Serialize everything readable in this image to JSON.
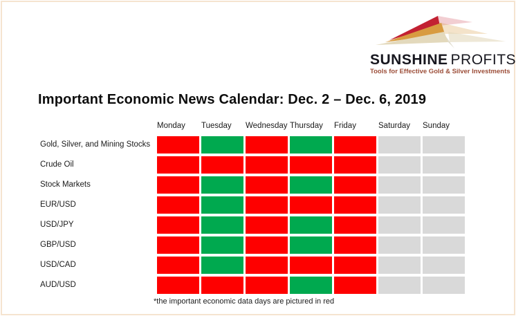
{
  "frame": {
    "border_color": "#f5e4d0"
  },
  "logo": {
    "name_part1": "SUNSHINE",
    "name_part2": "PROFITS",
    "tagline": "Tools for Effective Gold & Silver Investments",
    "colors": {
      "ray_red": "#c22132",
      "ray_gold": "#d89b40",
      "ray_beige": "#e3d9bc",
      "name_text": "#17171f",
      "tagline_text": "#9c4e39"
    }
  },
  "chart_data": {
    "type": "heatmap",
    "title": "Important Economic News Calendar: Dec. 2 – Dec. 6, 2019",
    "columns": [
      "Monday",
      "Tuesday",
      "Wednesday",
      "Thursday",
      "Friday",
      "Saturday",
      "Sunday"
    ],
    "rows": [
      {
        "label": "Gold, Silver, and Mining Stocks",
        "values": [
          "red",
          "green",
          "red",
          "green",
          "red",
          "gray",
          "gray"
        ]
      },
      {
        "label": "Crude Oil",
        "values": [
          "red",
          "red",
          "red",
          "red",
          "red",
          "gray",
          "gray"
        ]
      },
      {
        "label": "Stock Markets",
        "values": [
          "red",
          "green",
          "red",
          "green",
          "red",
          "gray",
          "gray"
        ]
      },
      {
        "label": "EUR/USD",
        "values": [
          "red",
          "green",
          "red",
          "red",
          "red",
          "gray",
          "gray"
        ]
      },
      {
        "label": "USD/JPY",
        "values": [
          "red",
          "green",
          "red",
          "green",
          "red",
          "gray",
          "gray"
        ]
      },
      {
        "label": "GBP/USD",
        "values": [
          "red",
          "green",
          "red",
          "green",
          "red",
          "gray",
          "gray"
        ]
      },
      {
        "label": "USD/CAD",
        "values": [
          "red",
          "green",
          "red",
          "red",
          "red",
          "gray",
          "gray"
        ]
      },
      {
        "label": "AUD/USD",
        "values": [
          "red",
          "red",
          "red",
          "green",
          "red",
          "gray",
          "gray"
        ]
      }
    ],
    "cell_colors": {
      "red": "#fe0000",
      "green": "#00a94f",
      "gray": "#d9d9d9"
    },
    "note": "*the important economic data days are pictured in red",
    "legend_position": "none",
    "grid": "off"
  },
  "footnote": "*the important economic data days are pictured in red"
}
